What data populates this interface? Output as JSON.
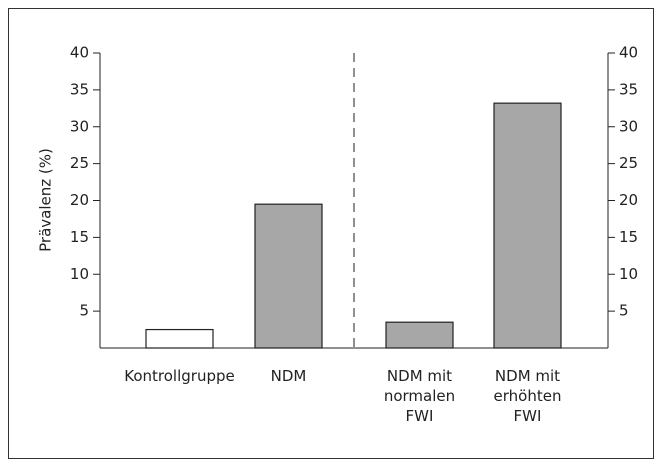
{
  "chart_data": {
    "type": "bar",
    "y_label": "Prävalenz (%)",
    "categories": [
      "Kontrollgruppe",
      "NDM",
      "NDM mit\nnormalen\nFWI",
      "NDM mit\nerhöhten\nFWI"
    ],
    "values": [
      2.5,
      19.5,
      3.5,
      33.2
    ],
    "colors": [
      "#ffffff",
      "#a7a7a7",
      "#a7a7a7",
      "#a7a7a7"
    ],
    "ylim": [
      0,
      40
    ],
    "yticks": [
      5,
      10,
      15,
      20,
      25,
      30,
      35,
      40
    ],
    "y2lim": [
      0,
      40
    ],
    "y2ticks": [
      5,
      10,
      15,
      20,
      25,
      30,
      35,
      40
    ]
  }
}
